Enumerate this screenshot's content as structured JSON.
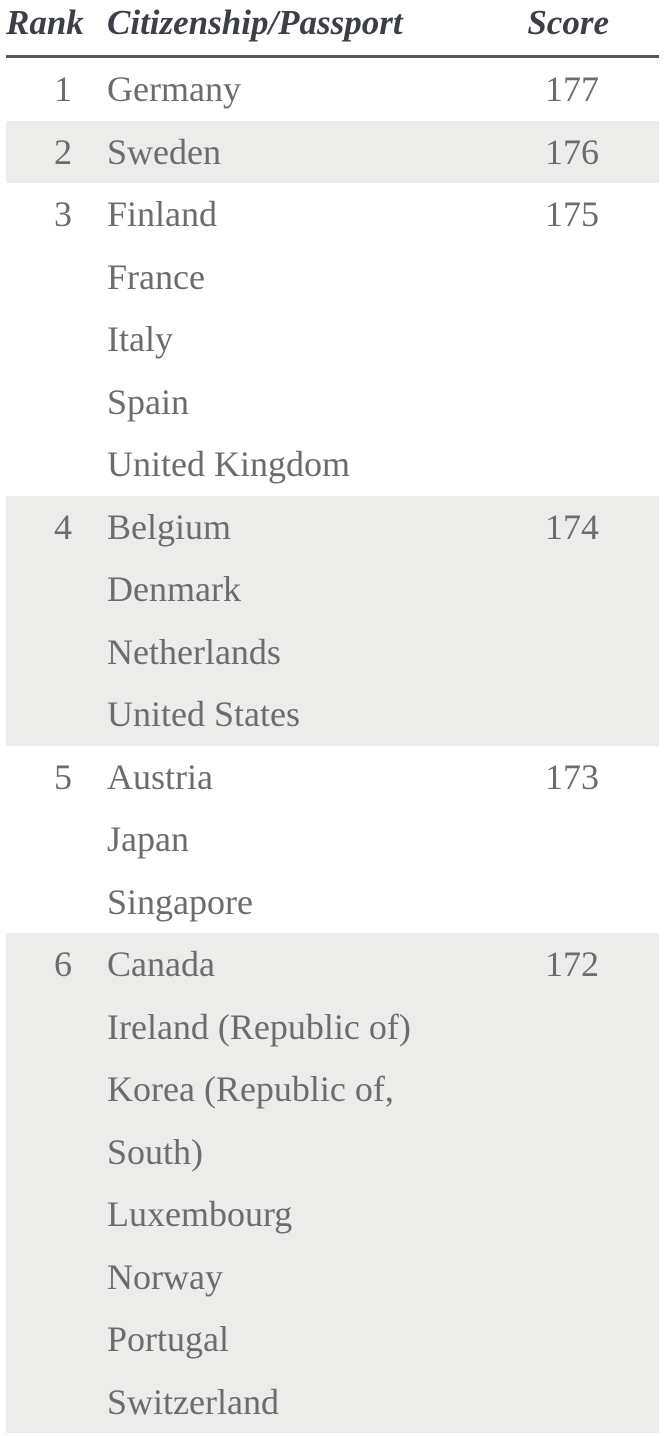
{
  "chart_data": {
    "type": "table",
    "columns": [
      "Rank",
      "Citizenship/Passport",
      "Score"
    ],
    "rows": [
      {
        "rank": "1",
        "countries": [
          "Germany"
        ],
        "score": "177",
        "shaded": false
      },
      {
        "rank": "2",
        "countries": [
          "Sweden"
        ],
        "score": "176",
        "shaded": true
      },
      {
        "rank": "3",
        "countries": [
          "Finland",
          "France",
          "Italy",
          "Spain",
          "United Kingdom"
        ],
        "score": "175",
        "shaded": false
      },
      {
        "rank": "4",
        "countries": [
          "Belgium",
          "Denmark",
          "Netherlands",
          "United States"
        ],
        "score": "174",
        "shaded": true
      },
      {
        "rank": "5",
        "countries": [
          "Austria",
          "Japan",
          "Singapore"
        ],
        "score": "173",
        "shaded": false
      },
      {
        "rank": "6",
        "countries": [
          "Canada",
          "Ireland (Republic of)",
          "Korea (Republic of, South)",
          "Luxembourg",
          "Norway",
          "Portugal",
          "Switzerland"
        ],
        "score": "172",
        "shaded": true
      }
    ]
  },
  "colors": {
    "header_text": "#3C3F45",
    "body_text": "#6C6C6C",
    "shaded_band": "#ECECEA",
    "header_rule": "#55575C",
    "background": "#FFFFFF"
  }
}
